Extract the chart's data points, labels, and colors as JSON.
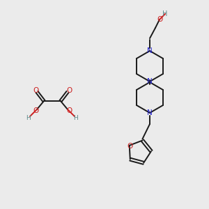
{
  "background_color": "#ebebeb",
  "atom_colors": {
    "N": "#2020cc",
    "O": "#cc2020",
    "H": "#5a8888"
  },
  "bond_color": "#1a1a1a",
  "figsize": [
    3.0,
    3.0
  ],
  "dpi": 100
}
